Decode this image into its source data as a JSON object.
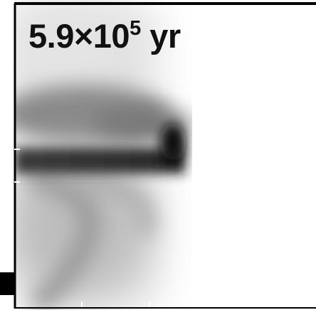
{
  "label": {
    "mantissa": "5.9×10",
    "exponent": "5",
    "unit": "yr"
  }
}
